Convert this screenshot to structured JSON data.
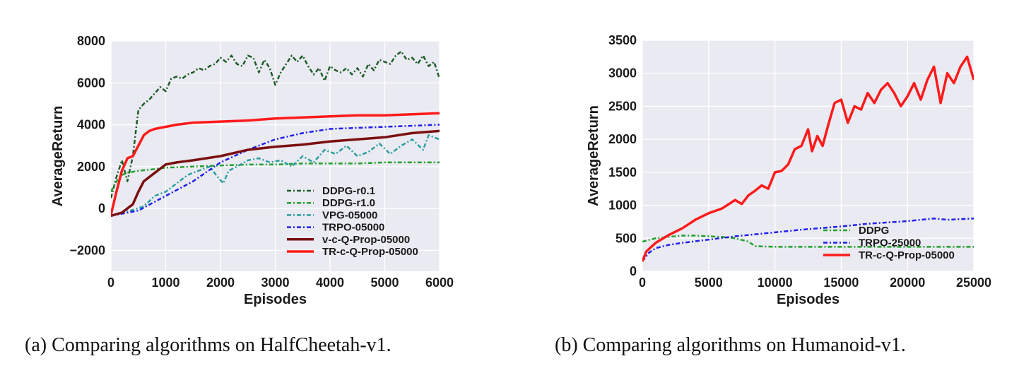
{
  "chart_data": [
    {
      "type": "line",
      "caption": "(a) Comparing algorithms on HalfCheetah-v1.",
      "xlabel": "Episodes",
      "ylabel": "AverageReturn",
      "xlim": [
        0,
        6000
      ],
      "ylim": [
        -3000,
        8000
      ],
      "xticks": [
        "0",
        "1000",
        "2000",
        "3000",
        "4000",
        "5000",
        "6000"
      ],
      "yticks": [
        "−2000",
        "0",
        "2000",
        "4000",
        "6000",
        "8000"
      ],
      "grid": true,
      "legend": "lower-right",
      "series": [
        {
          "name": "DDPG-r0.1",
          "color": "#1e5c28",
          "dash": "dashdot",
          "width": 2.5,
          "x": [
            0,
            100,
            200,
            300,
            400,
            500,
            600,
            700,
            800,
            900,
            1000,
            1100,
            1200,
            1300,
            1400,
            1500,
            1600,
            1700,
            1800,
            1900,
            2000,
            2100,
            2200,
            2300,
            2400,
            2500,
            2600,
            2700,
            2800,
            2900,
            3000,
            3100,
            3200,
            3300,
            3400,
            3500,
            3600,
            3700,
            3800,
            3900,
            4000,
            4100,
            4200,
            4300,
            4400,
            4500,
            4600,
            4700,
            4800,
            4900,
            5000,
            5100,
            5200,
            5300,
            5400,
            5500,
            5600,
            5700,
            5800,
            5900,
            6000
          ],
          "y": [
            500,
            1500,
            2300,
            1300,
            2500,
            4700,
            5000,
            5200,
            5500,
            5800,
            5600,
            6200,
            6300,
            6200,
            6400,
            6500,
            6700,
            6600,
            6800,
            6900,
            7200,
            7000,
            7300,
            6900,
            6800,
            7300,
            7200,
            6500,
            7100,
            6700,
            5900,
            6500,
            6900,
            7300,
            7000,
            7300,
            6800,
            6400,
            6700,
            6100,
            6800,
            6600,
            6500,
            6700,
            6400,
            6700,
            6300,
            6900,
            6600,
            7100,
            7000,
            6900,
            7300,
            7500,
            7100,
            7200,
            6900,
            7300,
            6800,
            7000,
            6200
          ]
        },
        {
          "name": "DDPG-r1.0",
          "color": "#22a02c",
          "dash": "dashdot",
          "width": 2.5,
          "x": [
            0,
            100,
            200,
            300,
            400,
            500,
            700,
            1000,
            1500,
            2000,
            2500,
            3000,
            3500,
            4000,
            4500,
            5000,
            5500,
            6000
          ],
          "y": [
            800,
            1300,
            1600,
            1700,
            1750,
            1800,
            1850,
            1950,
            2000,
            2050,
            2100,
            2100,
            2150,
            2150,
            2150,
            2200,
            2200,
            2200
          ]
        },
        {
          "name": "VPG-05000",
          "color": "#2a9e9e",
          "dash": "dashdot",
          "width": 2.5,
          "x": [
            0,
            300,
            600,
            800,
            1000,
            1200,
            1400,
            1600,
            1800,
            1950,
            2050,
            2150,
            2300,
            2500,
            2700,
            2900,
            3100,
            3300,
            3500,
            3700,
            3900,
            4100,
            4300,
            4500,
            4700,
            4900,
            5100,
            5300,
            5500,
            5700,
            5800,
            6000
          ],
          "y": [
            -350,
            -150,
            100,
            600,
            800,
            1200,
            1600,
            1800,
            2000,
            1500,
            1200,
            1800,
            2000,
            2300,
            2400,
            2200,
            2300,
            2000,
            2500,
            2200,
            2800,
            2600,
            3000,
            2500,
            2700,
            3100,
            2600,
            3000,
            3300,
            2800,
            3500,
            3300
          ]
        },
        {
          "name": "TRPO-05000",
          "color": "#1f1fee",
          "dash": "dashdot",
          "width": 2.5,
          "x": [
            0,
            500,
            1000,
            1500,
            2000,
            2500,
            3000,
            3500,
            4000,
            4500,
            5000,
            5500,
            6000
          ],
          "y": [
            -350,
            -100,
            600,
            1300,
            2200,
            2800,
            3300,
            3600,
            3800,
            3850,
            3900,
            3950,
            4000
          ]
        },
        {
          "name": "v-c-Q-Prop-05000",
          "color": "#7a1010",
          "dash": "solid",
          "width": 3.5,
          "x": [
            0,
            200,
            400,
            500,
            600,
            800,
            1000,
            1200,
            1500,
            2000,
            2500,
            3000,
            3500,
            4000,
            4500,
            5000,
            5500,
            6000
          ],
          "y": [
            -350,
            -200,
            200,
            800,
            1300,
            1700,
            2100,
            2200,
            2300,
            2500,
            2800,
            2950,
            3050,
            3200,
            3300,
            3400,
            3600,
            3700
          ]
        },
        {
          "name": "TR-c-Q-Prop-05000",
          "color": "#ff1a1a",
          "dash": "solid",
          "width": 3.5,
          "x": [
            0,
            100,
            200,
            300,
            400,
            500,
            600,
            700,
            800,
            1000,
            1200,
            1500,
            2000,
            2500,
            3000,
            3500,
            4000,
            4500,
            5000,
            5500,
            6000
          ],
          "y": [
            -300,
            800,
            1800,
            2400,
            2500,
            3000,
            3500,
            3700,
            3800,
            3900,
            4000,
            4100,
            4150,
            4200,
            4300,
            4350,
            4400,
            4450,
            4450,
            4500,
            4550
          ]
        }
      ]
    },
    {
      "type": "line",
      "caption": "(b) Comparing algorithms on Humanoid-v1.",
      "xlabel": "Episodes",
      "ylabel": "AverageReturn",
      "xlim": [
        0,
        25000
      ],
      "ylim": [
        0,
        3500
      ],
      "xticks": [
        "0",
        "5000",
        "10000",
        "15000",
        "20000",
        "25000"
      ],
      "yticks": [
        "0",
        "500",
        "1000",
        "1500",
        "2000",
        "2500",
        "3000",
        "3500"
      ],
      "grid": true,
      "legend": "lower-right",
      "series": [
        {
          "name": "DDPG",
          "color": "#22a02c",
          "dash": "dashdot",
          "width": 2.5,
          "x": [
            0,
            1000,
            2000,
            3000,
            4000,
            5000,
            6000,
            7000,
            8000,
            8500,
            10000,
            15000,
            20000,
            25000
          ],
          "y": [
            450,
            500,
            520,
            540,
            540,
            530,
            520,
            500,
            450,
            380,
            370,
            370,
            370,
            370
          ]
        },
        {
          "name": "TRPO-25000",
          "color": "#1f1fee",
          "dash": "dashdot",
          "width": 2.5,
          "x": [
            0,
            500,
            1000,
            2000,
            3000,
            5000,
            7000,
            10000,
            12000,
            15000,
            17000,
            20000,
            22000,
            23000,
            25000
          ],
          "y": [
            150,
            280,
            350,
            400,
            430,
            480,
            530,
            590,
            630,
            680,
            720,
            760,
            800,
            780,
            800
          ]
        },
        {
          "name": "TR-c-Q-Prop-05000",
          "color": "#ff1a1a",
          "dash": "solid",
          "width": 3.5,
          "x": [
            0,
            300,
            1000,
            2000,
            3000,
            4000,
            5000,
            6000,
            7000,
            7500,
            8000,
            8500,
            9000,
            9500,
            10000,
            10500,
            11000,
            11500,
            12000,
            12500,
            12800,
            13200,
            13600,
            14000,
            14500,
            15000,
            15500,
            16000,
            16500,
            17000,
            17500,
            18000,
            18500,
            19000,
            19500,
            20000,
            20500,
            21000,
            21500,
            22000,
            22500,
            23000,
            23500,
            24000,
            24500,
            25000
          ],
          "y": [
            150,
            300,
            430,
            550,
            650,
            780,
            880,
            950,
            1080,
            1020,
            1150,
            1220,
            1300,
            1250,
            1500,
            1520,
            1620,
            1850,
            1900,
            2150,
            1820,
            2050,
            1900,
            2200,
            2550,
            2600,
            2250,
            2500,
            2450,
            2700,
            2550,
            2750,
            2850,
            2700,
            2500,
            2650,
            2850,
            2600,
            2900,
            3100,
            2550,
            3000,
            2850,
            3100,
            3250,
            2900
          ]
        }
      ]
    }
  ]
}
